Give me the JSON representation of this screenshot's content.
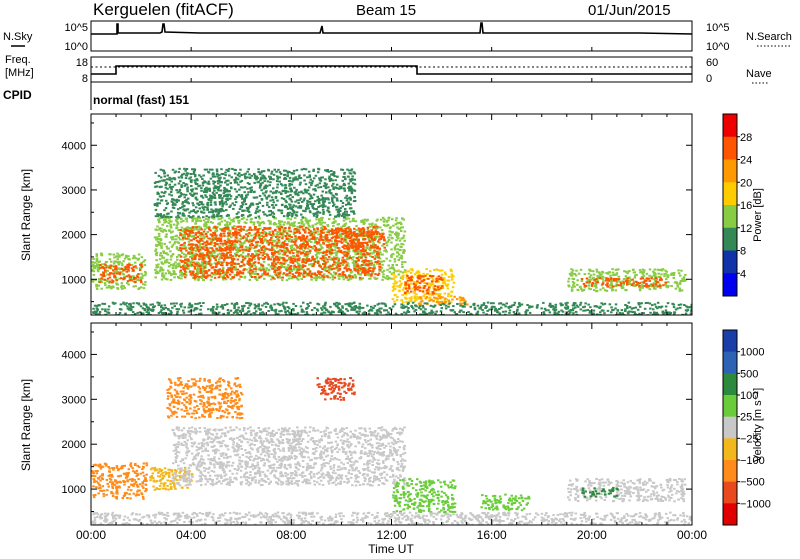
{
  "header": {
    "title": "Kerguelen (fitACF)",
    "beam": "Beam 15",
    "date": "01/Jun/2015"
  },
  "noise_panel": {
    "left_label": "N.Sky",
    "right_label": "N.Search",
    "left_ticks": [
      "10^5",
      "10^0"
    ],
    "right_ticks": [
      "10^5",
      "10^0"
    ]
  },
  "freq_panel": {
    "left_label_line1": "Freq.",
    "left_label_line2": "[MHz]",
    "right_label": "Nave",
    "left_ticks": [
      "18",
      "8"
    ],
    "right_ticks": [
      "60",
      "0"
    ]
  },
  "cpid_panel": {
    "label": "CPID",
    "text": "normal (fast) 151"
  },
  "power_colorbar": {
    "label": "Power [dB]",
    "ticks": [
      "28",
      "24",
      "20",
      "16",
      "12",
      "8",
      "4"
    ],
    "colors": [
      "#ee0000",
      "#ff5500",
      "#ff9900",
      "#ffcc00",
      "#88cc44",
      "#338855",
      "#1133aa",
      "#0000ee"
    ]
  },
  "velocity_colorbar": {
    "label": "Velocity [m s⁻¹]",
    "ticks": [
      "1000",
      "500",
      "100",
      "25",
      "−25",
      "−100",
      "−500",
      "−1000"
    ],
    "colors": [
      "#1a3ea8",
      "#2e62b4",
      "#2c8a3c",
      "#6acc3a",
      "#c8c8c8",
      "#f2b71a",
      "#ff8c1a",
      "#e8491f",
      "#e00000"
    ]
  },
  "x_axis": {
    "label": "Time UT",
    "ticks": [
      "00:00",
      "04:00",
      "08:00",
      "12:00",
      "16:00",
      "20:00",
      "00:00"
    ]
  },
  "chart_data": [
    {
      "type": "heatmap",
      "title": "Power",
      "ylabel": "Slant Range [km]",
      "xlabel": "",
      "xlim": [
        0,
        24
      ],
      "ylim": [
        200,
        4700
      ],
      "y_ticks": [
        1000,
        2000,
        3000,
        4000
      ],
      "colorbar_label": "Power [dB]",
      "colorbar_range": [
        0,
        32
      ],
      "regions": [
        {
          "t0": 0.0,
          "t1": 2.2,
          "r0": 800,
          "r1": 1600,
          "value": 14
        },
        {
          "t0": 0.3,
          "t1": 2.0,
          "r0": 950,
          "r1": 1350,
          "value": 24
        },
        {
          "t0": 2.5,
          "t1": 12.5,
          "r0": 1000,
          "r1": 2400,
          "value": 14
        },
        {
          "t0": 3.5,
          "t1": 11.5,
          "r0": 1050,
          "r1": 2200,
          "value": 27
        },
        {
          "t0": 2.5,
          "t1": 10.5,
          "r0": 2400,
          "r1": 3500,
          "value": 10
        },
        {
          "t0": 10.0,
          "t1": 11.7,
          "r0": 1700,
          "r1": 2100,
          "value": 26
        },
        {
          "t0": 12.0,
          "t1": 14.5,
          "r0": 500,
          "r1": 1250,
          "value": 18
        },
        {
          "t0": 12.5,
          "t1": 14.0,
          "r0": 700,
          "r1": 1100,
          "value": 26
        },
        {
          "t0": 13.0,
          "t1": 15.0,
          "r0": 450,
          "r1": 650,
          "value": 20
        },
        {
          "t0": 19.0,
          "t1": 23.7,
          "r0": 750,
          "r1": 1250,
          "value": 14
        },
        {
          "t0": 19.5,
          "t1": 23.0,
          "r0": 850,
          "r1": 1050,
          "value": 24
        },
        {
          "t0": 0.0,
          "t1": 24.0,
          "r0": 200,
          "r1": 500,
          "value": 8
        }
      ]
    },
    {
      "type": "heatmap",
      "title": "Velocity",
      "ylabel": "Slant Range [km]",
      "xlabel": "Time UT",
      "xlim": [
        0,
        24
      ],
      "ylim": [
        200,
        4700
      ],
      "y_ticks": [
        1000,
        2000,
        3000,
        4000
      ],
      "colorbar_label": "Velocity [m s⁻¹]",
      "colorbar_range": [
        -1000,
        1000
      ],
      "regions": [
        {
          "t0": 0.0,
          "t1": 2.2,
          "r0": 800,
          "r1": 1600,
          "value": -100
        },
        {
          "t0": 2.3,
          "t1": 4.0,
          "r0": 1000,
          "r1": 1500,
          "value": -50
        },
        {
          "t0": 3.2,
          "t1": 12.5,
          "r0": 1100,
          "r1": 2400,
          "value": 0
        },
        {
          "t0": 3.0,
          "t1": 6.0,
          "r0": 2600,
          "r1": 3500,
          "value": -200
        },
        {
          "t0": 9.0,
          "t1": 10.5,
          "r0": 3000,
          "r1": 3500,
          "value": -300
        },
        {
          "t0": 12.0,
          "t1": 14.5,
          "r0": 500,
          "r1": 1250,
          "value": 60
        },
        {
          "t0": 15.5,
          "t1": 17.5,
          "r0": 550,
          "r1": 900,
          "value": 60
        },
        {
          "t0": 19.0,
          "t1": 23.7,
          "r0": 750,
          "r1": 1250,
          "value": 0
        },
        {
          "t0": 19.5,
          "t1": 21.0,
          "r0": 850,
          "r1": 1050,
          "value": 150
        },
        {
          "t0": 0.0,
          "t1": 24.0,
          "r0": 200,
          "r1": 500,
          "value": -10
        }
      ]
    }
  ]
}
